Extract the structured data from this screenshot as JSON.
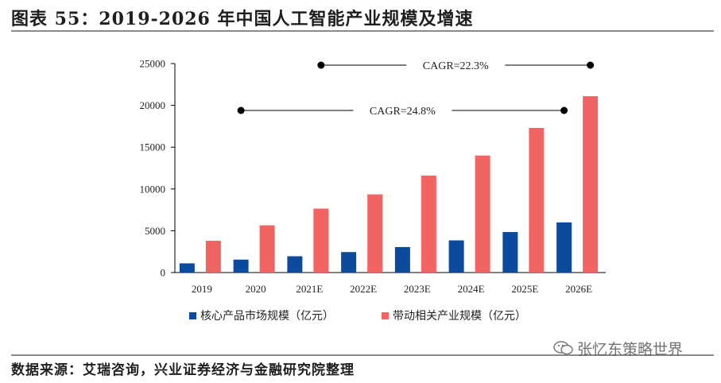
{
  "header": {
    "title": "图表 55：2019-2026 年中国人工智能产业规模及增速"
  },
  "footer": {
    "source": "数据来源：艾瑞咨询，兴业证券经济与金融研究院整理"
  },
  "watermark": {
    "text": "张忆东策略世界",
    "icon": "wechat-icon"
  },
  "chart_data": {
    "type": "bar",
    "categories": [
      "2019",
      "2020",
      "2021E",
      "2022E",
      "2023E",
      "2024E",
      "2025E",
      "2026E"
    ],
    "series": [
      {
        "name": "核心产品市场规模（亿元）",
        "color": "#0b4a9c",
        "values": [
          1100,
          1550,
          1950,
          2450,
          3050,
          3850,
          4850,
          6000
        ]
      },
      {
        "name": "带动相关产业规模（亿元）",
        "color": "#f06464",
        "values": [
          3800,
          5650,
          7650,
          9350,
          11600,
          14000,
          17300,
          21100
        ]
      }
    ],
    "ylim": [
      0,
      25000
    ],
    "yticks": [
      "0",
      "5000",
      "10000",
      "15000",
      "20000",
      "25000"
    ],
    "grid": false,
    "legend": "bottom",
    "annotations": [
      {
        "text": "CAGR=22.3%",
        "from": "2021E",
        "to": "2026E",
        "series": "带动相关产业规模（亿元）"
      },
      {
        "text": "CAGR=24.8%",
        "from": "2020",
        "to": "2026E",
        "series": "核心产品市场规模（亿元）"
      }
    ]
  }
}
